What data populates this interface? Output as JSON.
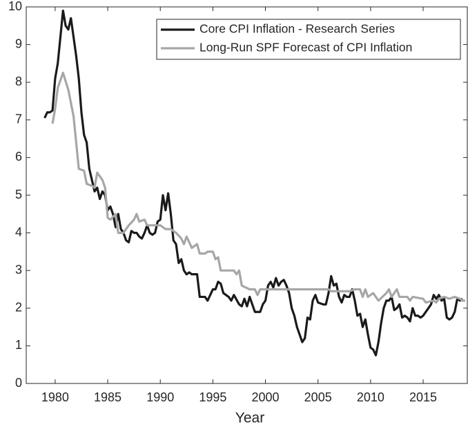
{
  "chart_data": {
    "type": "line",
    "x_label": "Year",
    "xlim": [
      1977.25,
      2019.2
    ],
    "ylim": [
      0,
      10
    ],
    "xticks": [
      1980,
      1985,
      1990,
      1995,
      2000,
      2005,
      2010,
      2015
    ],
    "yticks": [
      0,
      1,
      2,
      3,
      4,
      5,
      6,
      7,
      8,
      9,
      10
    ],
    "grid": false,
    "legend": "top-right",
    "series": [
      {
        "name": "Core CPI Inflation - Research Series",
        "color": "#1a1a1a",
        "x": [
          1979,
          1979.25,
          1979.5,
          1979.75,
          1980,
          1980.25,
          1980.5,
          1980.75,
          1981,
          1981.25,
          1981.5,
          1981.75,
          1982,
          1982.25,
          1982.5,
          1982.75,
          1983,
          1983.25,
          1983.5,
          1983.75,
          1984,
          1984.25,
          1984.5,
          1984.75,
          1985,
          1985.25,
          1985.5,
          1985.75,
          1986,
          1986.25,
          1986.5,
          1986.75,
          1987,
          1987.25,
          1987.5,
          1987.75,
          1988,
          1988.25,
          1988.5,
          1988.75,
          1989,
          1989.25,
          1989.5,
          1989.75,
          1990,
          1990.25,
          1990.5,
          1990.75,
          1991,
          1991.25,
          1991.5,
          1991.75,
          1992,
          1992.25,
          1992.5,
          1992.75,
          1993,
          1993.5,
          1993.75,
          1994.25,
          1994.5,
          1994.75,
          1995,
          1995.25,
          1995.5,
          1995.75,
          1996,
          1996.5,
          1996.75,
          1997,
          1997.5,
          1997.75,
          1998,
          1998.25,
          1998.5,
          1998.75,
          1999,
          1999.5,
          1999.75,
          2000,
          2000.25,
          2000.5,
          2000.75,
          2001,
          2001.25,
          2001.5,
          2001.75,
          2002,
          2002.25,
          2002.5,
          2002.75,
          2003,
          2003.25,
          2003.5,
          2003.75,
          2004,
          2004.25,
          2004.5,
          2004.75,
          2005,
          2005.5,
          2005.75,
          2006,
          2006.25,
          2006.5,
          2006.75,
          2007,
          2007.25,
          2007.5,
          2007.75,
          2008,
          2008.25,
          2008.5,
          2008.75,
          2009,
          2009.25,
          2009.5,
          2009.75,
          2010,
          2010.25,
          2010.5,
          2010.75,
          2011,
          2011.25,
          2011.5,
          2011.75,
          2012,
          2012.25,
          2012.5,
          2012.75,
          2013,
          2013.25,
          2013.5,
          2013.75,
          2014,
          2014.25,
          2014.5,
          2014.75,
          2015,
          2015.5,
          2015.75,
          2016,
          2016.25,
          2016.5,
          2016.75,
          2017,
          2017.25,
          2017.5,
          2017.75,
          2018,
          2018.25,
          2018.5,
          2018.75
        ],
        "values": [
          7.05,
          7.2,
          7.2,
          7.25,
          8.1,
          8.5,
          9.2,
          9.9,
          9.5,
          9.4,
          9.7,
          9.2,
          8.7,
          8.1,
          7.2,
          6.6,
          6.4,
          5.7,
          5.4,
          5.1,
          5.2,
          4.9,
          5.1,
          5.0,
          4.6,
          4.7,
          4.5,
          4.15,
          4.5,
          4.1,
          4.0,
          3.8,
          3.75,
          4.05,
          4.0,
          4.0,
          3.9,
          3.85,
          4.0,
          4.2,
          4.0,
          3.95,
          4.0,
          4.3,
          4.35,
          5.0,
          4.6,
          5.05,
          4.5,
          3.8,
          3.7,
          3.2,
          3.3,
          3.0,
          2.9,
          2.95,
          2.9,
          2.9,
          2.3,
          2.3,
          2.2,
          2.35,
          2.5,
          2.5,
          2.7,
          2.65,
          2.4,
          2.3,
          2.2,
          2.35,
          2.1,
          2.05,
          2.25,
          2.05,
          2.3,
          2.1,
          1.9,
          1.9,
          2.1,
          2.2,
          2.6,
          2.7,
          2.55,
          2.8,
          2.6,
          2.7,
          2.75,
          2.6,
          2.4,
          2.0,
          1.8,
          1.5,
          1.3,
          1.1,
          1.2,
          1.75,
          1.7,
          2.2,
          2.35,
          2.15,
          2.1,
          2.1,
          2.4,
          2.85,
          2.6,
          2.65,
          2.3,
          2.15,
          2.35,
          2.3,
          2.3,
          2.5,
          2.2,
          1.8,
          1.85,
          1.5,
          1.7,
          1.3,
          0.95,
          0.9,
          0.75,
          1.1,
          1.6,
          2.0,
          2.2,
          2.2,
          2.3,
          1.95,
          2.0,
          2.1,
          1.75,
          1.8,
          1.75,
          1.65,
          2.0,
          1.8,
          1.8,
          1.75,
          1.8,
          2.0,
          2.1,
          2.35,
          2.25,
          2.35,
          2.2,
          2.25,
          1.75,
          1.7,
          1.75,
          1.9,
          2.25,
          2.2,
          2.25
        ]
      },
      {
        "name": "Long-Run SPF Forecast of CPI Inflation",
        "color": "#a6a6a6",
        "x": [
          1979.75,
          1980,
          1980.25,
          1980.75,
          1981.25,
          1981.75,
          1982.25,
          1982.75,
          1983,
          1983.5,
          1983.75,
          1984,
          1984.5,
          1984.75,
          1985,
          1985.25,
          1985.75,
          1986,
          1986.5,
          1987,
          1987.5,
          1987.75,
          1988,
          1988.5,
          1988.75,
          1989.5,
          1990,
          1990.5,
          1991,
          1991.5,
          1992,
          1992.25,
          1992.5,
          1993,
          1993.5,
          1993.75,
          1994.25,
          1994.5,
          1995,
          1995.25,
          1995.5,
          1995.75,
          1997,
          1997.25,
          1997.5,
          1997.75,
          1998.5,
          1999,
          1999.25,
          1999.5,
          2006,
          2006.25,
          2008,
          2008.5,
          2009,
          2009.25,
          2009.5,
          2009.75,
          2010.25,
          2010.5,
          2010.75,
          2011.5,
          2011.75,
          2012,
          2012.5,
          2012.75,
          2013.5,
          2013.75,
          2014,
          2015,
          2015.25,
          2016,
          2016.25,
          2016.5,
          2017,
          2017.5,
          2018,
          2018.5,
          2018.75,
          2019
        ],
        "values": [
          6.9,
          7.3,
          7.85,
          8.25,
          7.8,
          7.1,
          5.7,
          5.65,
          5.3,
          5.25,
          5.2,
          5.6,
          5.4,
          5.2,
          4.4,
          4.35,
          4.5,
          4.0,
          4.0,
          4.2,
          4.35,
          4.5,
          4.3,
          4.35,
          4.2,
          4.2,
          4.2,
          4.1,
          4.1,
          4.0,
          3.85,
          3.7,
          3.9,
          3.6,
          3.7,
          3.45,
          3.45,
          3.5,
          3.5,
          3.3,
          3.35,
          3.0,
          3.0,
          2.9,
          3.0,
          2.6,
          2.5,
          2.5,
          2.35,
          2.5,
          2.5,
          2.45,
          2.45,
          2.5,
          2.5,
          2.3,
          2.5,
          2.3,
          2.4,
          2.3,
          2.2,
          2.4,
          2.5,
          2.3,
          2.5,
          2.3,
          2.3,
          2.2,
          2.3,
          2.25,
          2.15,
          2.2,
          2.15,
          2.25,
          2.3,
          2.25,
          2.3,
          2.25,
          2.2,
          2.2
        ]
      }
    ]
  }
}
